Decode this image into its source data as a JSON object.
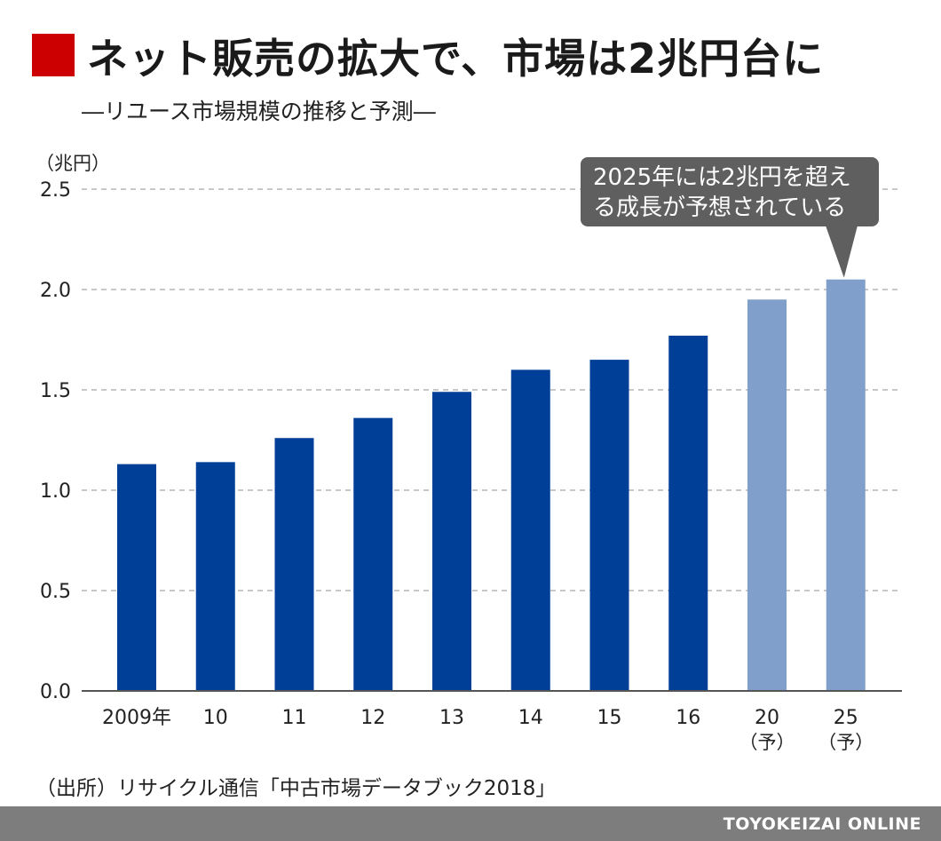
{
  "title": "ネット販売の拡大で、市場は2兆円台に",
  "subtitle": "―リユース市場規模の推移と予測―",
  "unit": "（兆円）",
  "source": "（出所）リサイクル通信「中古市場データブック2018」",
  "footer": "TOYOKEIZAI ONLINE",
  "callout": {
    "line1": "2025年には2兆円を超え",
    "line2": "る成長が予想されている"
  },
  "colors": {
    "title_block": "#cc0000",
    "actual": "#003f98",
    "forecast": "#819fcb",
    "callout_bg": "#5f5f5f",
    "grid": "#b5b5b5",
    "axis": "#555555",
    "footer_bg": "#7d7d7d"
  },
  "chart_data": {
    "type": "bar",
    "categories": [
      "2009年",
      "10",
      "11",
      "12",
      "13",
      "14",
      "15",
      "16",
      "20",
      "25"
    ],
    "category_notes": [
      "",
      "",
      "",
      "",
      "",
      "",
      "",
      "",
      "（予）",
      "（予）"
    ],
    "values": [
      1.13,
      1.14,
      1.26,
      1.36,
      1.49,
      1.6,
      1.65,
      1.77,
      1.95,
      2.05
    ],
    "forecast": [
      false,
      false,
      false,
      false,
      false,
      false,
      false,
      false,
      true,
      true
    ],
    "ylim": [
      0,
      2.5
    ],
    "yticks": [
      "0.0",
      "0.5",
      "1.0",
      "1.5",
      "2.0",
      "2.5"
    ],
    "grid": true,
    "xlabel": "",
    "ylabel": ""
  }
}
